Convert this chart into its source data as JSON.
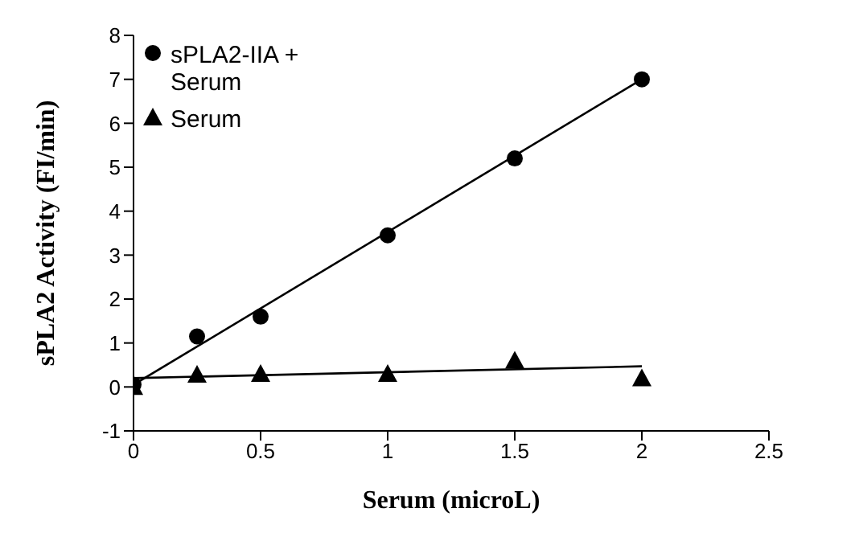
{
  "chart_data": {
    "type": "scatter",
    "xlabel": "Serum (microL)",
    "ylabel": "sPLA2 Activity (FI/min)",
    "xlim": [
      0,
      2.5
    ],
    "xticks": [
      0,
      0.5,
      1,
      1.5,
      2,
      2.5
    ],
    "ylim": [
      -1,
      8
    ],
    "yticks": [
      -1,
      0,
      1,
      2,
      3,
      4,
      5,
      6,
      7,
      8
    ],
    "grid": false,
    "legend": "top left",
    "series": [
      {
        "name": "sPLA2-IIA + Serum",
        "color": "#000000",
        "marker": "circle",
        "x": [
          0,
          0.25,
          0.5,
          1,
          1.5,
          2
        ],
        "values": [
          0.05,
          1.15,
          1.6,
          3.45,
          5.2,
          7
        ]
      },
      {
        "name": "Serum",
        "color": "#000000",
        "marker": "triangle",
        "x": [
          0,
          0.25,
          0.5,
          1,
          1.5,
          2
        ],
        "values": [
          0,
          0.28,
          0.3,
          0.3,
          0.6,
          0.2
        ]
      },
      {
        "type": "line",
        "color": "#000000",
        "marker": "none",
        "x": [
          0,
          2
        ],
        "values": [
          0.05,
          7
        ]
      },
      {
        "type": "line",
        "color": "#000000",
        "marker": "none",
        "x": [
          0,
          2
        ],
        "values": [
          0.2,
          0.47
        ]
      }
    ]
  }
}
